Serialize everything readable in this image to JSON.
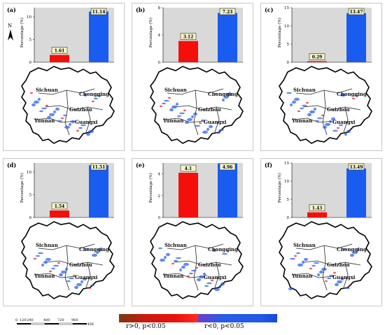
{
  "north": {
    "letter": "N"
  },
  "panels": [
    {
      "letter": "(a)",
      "values": [
        1.61,
        11.14
      ],
      "labels": [
        "1.61",
        "11.14"
      ],
      "ylabel": "Percentage (%)",
      "ylim": [
        0,
        12
      ],
      "yticks": [
        "0",
        "5",
        "10"
      ]
    },
    {
      "letter": "(b)",
      "values": [
        3.12,
        7.23
      ],
      "labels": [
        "3.12",
        "7.23"
      ],
      "ylabel": "Percentage (%)",
      "ylim": [
        0,
        8
      ],
      "yticks": [
        "0",
        "4",
        "8"
      ]
    },
    {
      "letter": "(c)",
      "values": [
        0.29,
        13.47
      ],
      "labels": [
        "0.29",
        "13.47"
      ],
      "ylabel": "Percentage (%)",
      "ylim": [
        0,
        15
      ],
      "yticks": [
        "0",
        "5",
        "10",
        "15"
      ]
    },
    {
      "letter": "(d)",
      "values": [
        1.54,
        11.51
      ],
      "labels": [
        "1.54",
        "11.51"
      ],
      "ylabel": "Percentage (%)",
      "ylim": [
        0,
        12
      ],
      "yticks": [
        "0",
        "5",
        "10"
      ]
    },
    {
      "letter": "(e)",
      "values": [
        4.1,
        4.96
      ],
      "labels": [
        "4.1",
        "4.96"
      ],
      "ylabel": "Percentage (%)",
      "ylim": [
        0,
        5
      ],
      "yticks": [
        "0",
        "2",
        "4"
      ]
    },
    {
      "letter": "(f)",
      "values": [
        1.43,
        13.49
      ],
      "labels": [
        "1.43",
        "13.49"
      ],
      "ylabel": "Percentage (%)",
      "ylim": [
        0,
        15
      ],
      "yticks": [
        "0",
        "5",
        "10",
        "15"
      ]
    }
  ],
  "provinces": [
    "Sichuan",
    "Chongqing",
    "Guizhou",
    "Yunnan",
    "Guangxi"
  ],
  "legend": {
    "positive": {
      "label": "r>0, p<0.05",
      "color": "#e8120c"
    },
    "negative": {
      "label": "r<0, p<0.05",
      "color": "#1f5ae8"
    }
  },
  "scale": {
    "ticks": [
      "0",
      "120",
      "240",
      "480",
      "720",
      "960"
    ],
    "unit": "KM"
  },
  "colors": {
    "bar_pos": "#f40f0a",
    "bar_neg": "#1a5cf0",
    "plot_bg": "#d9d9d9"
  }
}
